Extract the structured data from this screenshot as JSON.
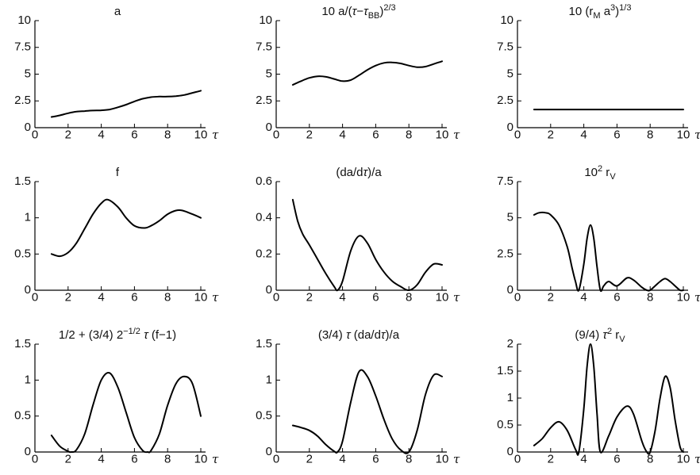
{
  "chart_data": [
    {
      "type": "line",
      "title": "a",
      "xlabel": "τ",
      "xlim": [
        0,
        10
      ],
      "ylim": [
        0,
        10
      ],
      "xticks": [
        "0",
        "2",
        "4",
        "6",
        "8",
        "10"
      ],
      "yticks": [
        "0",
        "2.5",
        "5",
        "7.5",
        "10"
      ],
      "x": [
        1,
        1.5,
        2,
        2.5,
        3,
        3.5,
        4,
        4.5,
        5,
        5.5,
        6,
        6.5,
        7,
        7.5,
        8,
        8.5,
        9,
        9.5,
        10
      ],
      "y": [
        1.0,
        1.15,
        1.35,
        1.5,
        1.55,
        1.6,
        1.62,
        1.7,
        1.9,
        2.15,
        2.45,
        2.7,
        2.85,
        2.9,
        2.9,
        2.95,
        3.05,
        3.25,
        3.45
      ]
    },
    {
      "type": "line",
      "title": "10 a/(τ−τ_BB)^2/3",
      "xlabel": "τ",
      "xlim": [
        0,
        10
      ],
      "ylim": [
        0,
        10
      ],
      "xticks": [
        "0",
        "2",
        "4",
        "6",
        "8",
        "10"
      ],
      "yticks": [
        "0",
        "2.5",
        "5",
        "7.5",
        "10"
      ],
      "x": [
        1,
        1.5,
        2,
        2.5,
        3,
        3.5,
        4,
        4.5,
        5,
        5.5,
        6,
        6.5,
        7,
        7.5,
        8,
        8.5,
        9,
        9.5,
        10
      ],
      "y": [
        4.0,
        4.35,
        4.65,
        4.8,
        4.75,
        4.55,
        4.35,
        4.45,
        4.9,
        5.4,
        5.8,
        6.05,
        6.1,
        6.0,
        5.8,
        5.65,
        5.7,
        5.95,
        6.2
      ]
    },
    {
      "type": "line",
      "title": "10 (r_M a^3)^1/3",
      "xlabel": "τ",
      "xlim": [
        0,
        10
      ],
      "ylim": [
        0,
        10
      ],
      "xticks": [
        "0",
        "2",
        "4",
        "6",
        "8",
        "10"
      ],
      "yticks": [
        "0",
        "2.5",
        "5",
        "7.5",
        "10"
      ],
      "x": [
        1,
        10
      ],
      "y": [
        1.7,
        1.7
      ]
    },
    {
      "type": "line",
      "title": "f",
      "xlabel": "τ",
      "xlim": [
        0,
        10
      ],
      "ylim": [
        0,
        1.5
      ],
      "xticks": [
        "0",
        "2",
        "4",
        "6",
        "8",
        "10"
      ],
      "yticks": [
        "0",
        "0.5",
        "1",
        "1.5"
      ],
      "x": [
        1,
        1.5,
        2,
        2.5,
        3,
        3.5,
        4,
        4.4,
        5,
        5.5,
        6,
        6.6,
        7,
        7.5,
        8,
        8.5,
        8.9,
        9.5,
        10
      ],
      "y": [
        0.5,
        0.47,
        0.52,
        0.65,
        0.85,
        1.05,
        1.2,
        1.25,
        1.15,
        1.0,
        0.89,
        0.86,
        0.89,
        0.96,
        1.05,
        1.1,
        1.1,
        1.05,
        1.0
      ]
    },
    {
      "type": "line",
      "title": "(da/dτ)/a",
      "xlabel": "τ",
      "xlim": [
        0,
        10
      ],
      "ylim": [
        0,
        0.6
      ],
      "xticks": [
        "0",
        "2",
        "4",
        "6",
        "8",
        "10"
      ],
      "yticks": [
        "0",
        "0.2",
        "0.4",
        "0.6"
      ],
      "x": [
        1,
        1.3,
        1.6,
        2,
        2.5,
        3,
        3.5,
        3.7,
        4,
        4.5,
        5,
        5.5,
        6,
        6.5,
        7,
        7.5,
        8,
        8.5,
        9,
        9.5,
        10
      ],
      "y": [
        0.5,
        0.38,
        0.31,
        0.25,
        0.17,
        0.09,
        0.02,
        0.0,
        0.05,
        0.22,
        0.3,
        0.26,
        0.17,
        0.1,
        0.05,
        0.02,
        0.0,
        0.03,
        0.1,
        0.145,
        0.14
      ]
    },
    {
      "type": "line",
      "title": "10^2 r_V",
      "xlabel": "τ",
      "xlim": [
        0,
        10
      ],
      "ylim": [
        0,
        7.5
      ],
      "xticks": [
        "0",
        "2",
        "4",
        "6",
        "8",
        "10"
      ],
      "yticks": [
        "0",
        "2.5",
        "5",
        "7.5"
      ],
      "x": [
        1,
        1.3,
        1.7,
        2,
        2.5,
        3,
        3.3,
        3.5,
        3.7,
        4,
        4.2,
        4.4,
        4.6,
        4.8,
        5,
        5.2,
        5.5,
        6,
        6.6,
        7,
        7.5,
        7.8,
        8,
        8.3,
        8.6,
        8.9,
        9.2,
        9.5,
        9.8,
        10
      ],
      "y": [
        5.2,
        5.35,
        5.35,
        5.2,
        4.5,
        3.0,
        1.5,
        0.6,
        0.0,
        1.8,
        3.6,
        4.5,
        3.6,
        1.6,
        0.0,
        0.3,
        0.6,
        0.3,
        0.85,
        0.7,
        0.2,
        0.0,
        0.0,
        0.3,
        0.6,
        0.8,
        0.6,
        0.3,
        0.0,
        0.0
      ]
    },
    {
      "type": "line",
      "title": "1/2 + (3/4) 2^−1/2 τ (f−1)",
      "xlabel": "τ",
      "xlim": [
        0,
        10
      ],
      "ylim": [
        0,
        1.5
      ],
      "xticks": [
        "0",
        "2",
        "4",
        "6",
        "8",
        "10"
      ],
      "yticks": [
        "0",
        "0.5",
        "1",
        "1.5"
      ],
      "x": [
        1,
        1.5,
        2,
        2.2,
        2.5,
        3,
        3.5,
        4,
        4.5,
        5,
        5.5,
        6,
        6.5,
        6.8,
        7,
        7.5,
        8,
        8.5,
        9,
        9.5,
        10
      ],
      "y": [
        0.23,
        0.08,
        0.01,
        0.0,
        0.03,
        0.25,
        0.65,
        1.0,
        1.1,
        0.9,
        0.55,
        0.2,
        0.02,
        0.0,
        0.02,
        0.25,
        0.65,
        0.95,
        1.05,
        0.95,
        0.5
      ]
    },
    {
      "type": "line",
      "title": "(3/4) τ (da/dτ)/a",
      "xlabel": "τ",
      "xlim": [
        0,
        10
      ],
      "ylim": [
        0,
        1.5
      ],
      "xticks": [
        "0",
        "2",
        "4",
        "6",
        "8",
        "10"
      ],
      "yticks": [
        "0",
        "0.5",
        "1",
        "1.5"
      ],
      "x": [
        1,
        1.5,
        2,
        2.5,
        3,
        3.5,
        3.7,
        4,
        4.5,
        5,
        5.5,
        6,
        6.5,
        7,
        7.5,
        8,
        8.5,
        9,
        9.5,
        10
      ],
      "y": [
        0.37,
        0.34,
        0.3,
        0.22,
        0.1,
        0.01,
        0.0,
        0.15,
        0.7,
        1.12,
        1.05,
        0.78,
        0.45,
        0.18,
        0.03,
        0.0,
        0.3,
        0.8,
        1.07,
        1.05
      ]
    },
    {
      "type": "line",
      "title": "(9/4) τ^2 r_V",
      "xlabel": "τ",
      "xlim": [
        0,
        10
      ],
      "ylim": [
        0,
        2
      ],
      "xticks": [
        "0",
        "2",
        "4",
        "6",
        "8",
        "10"
      ],
      "yticks": [
        "0",
        "0.5",
        "1",
        "1.5",
        "2"
      ],
      "x": [
        1,
        1.5,
        2,
        2.5,
        3,
        3.5,
        3.7,
        4,
        4.2,
        4.4,
        4.6,
        4.8,
        5,
        5.5,
        6,
        6.6,
        7,
        7.5,
        7.8,
        8,
        8.3,
        8.6,
        8.9,
        9.2,
        9.5,
        9.8,
        10
      ],
      "y": [
        0.12,
        0.25,
        0.45,
        0.56,
        0.4,
        0.05,
        0.0,
        0.8,
        1.6,
        2.0,
        1.6,
        0.7,
        0.0,
        0.3,
        0.65,
        0.85,
        0.7,
        0.2,
        0.0,
        0.0,
        0.4,
        1.0,
        1.4,
        1.2,
        0.6,
        0.1,
        0.0
      ]
    }
  ]
}
